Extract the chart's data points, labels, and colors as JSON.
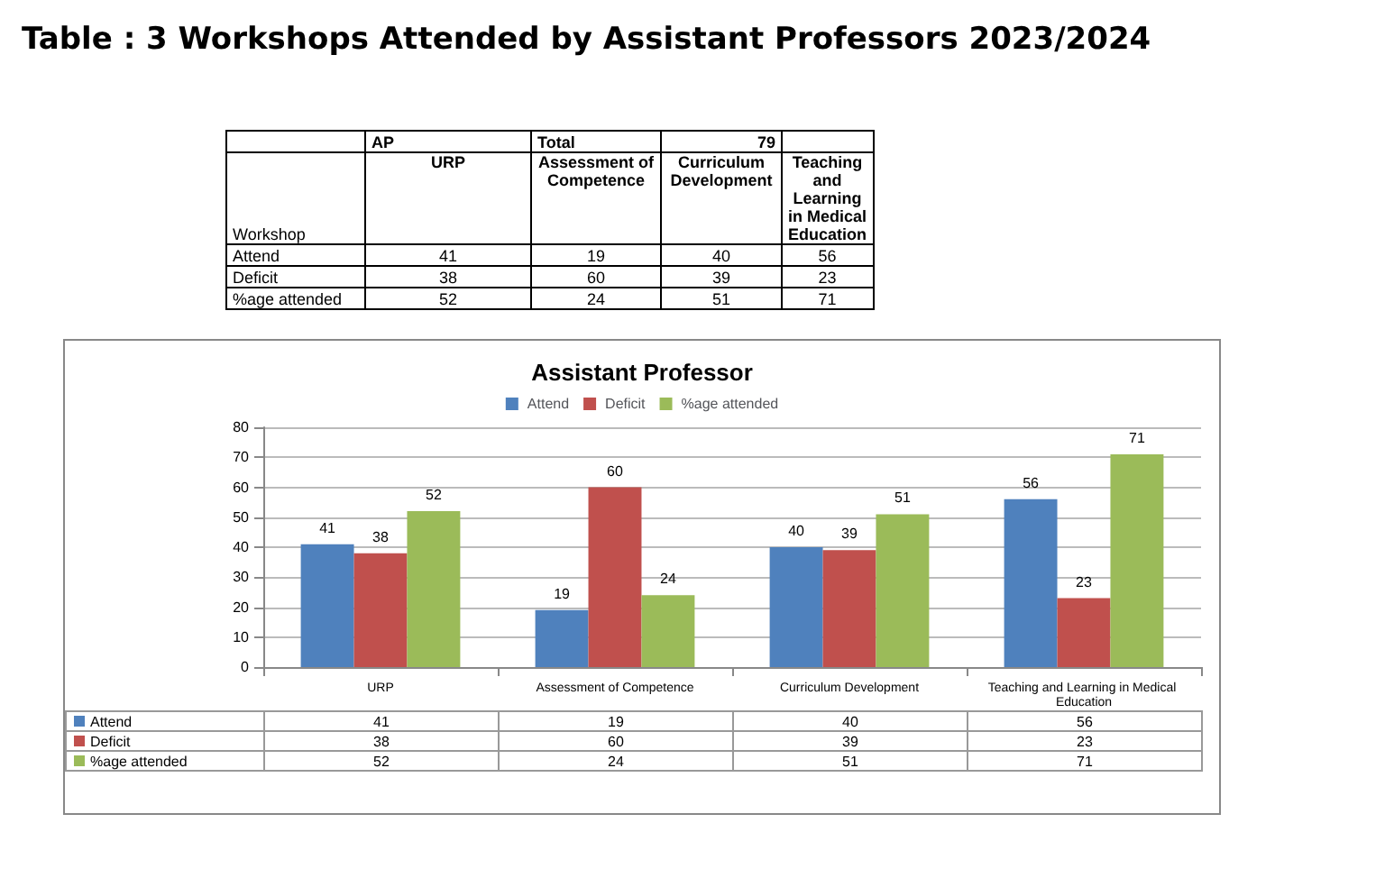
{
  "chart_data": [
    {
      "type": "other",
      "title": "Table : 3 Workshops Attended by Assistant Professors 2023/2024",
      "annotations": [
        "AP",
        "Total",
        "79",
        "Workshop"
      ],
      "categories": [
        "URP",
        "Assessment of Competence",
        "Curriculum Development",
        "Teaching and Learning in Medical Education"
      ],
      "series": [
        {
          "name": "Attend",
          "values": [
            41,
            19,
            40,
            56
          ],
          "value_labels": [
            "41",
            "19",
            "40",
            "56"
          ]
        },
        {
          "name": "Deficit",
          "values": [
            38,
            60,
            39,
            23
          ],
          "value_labels": [
            "38",
            "60",
            "39",
            "23"
          ]
        },
        {
          "name": "%age attended",
          "values": [
            52,
            24,
            51,
            71
          ],
          "value_labels": [
            "52",
            "24",
            "51",
            "71"
          ]
        }
      ]
    },
    {
      "type": "bar",
      "title": "Assistant Professor",
      "categories": [
        "URP",
        "Assessment of Competence",
        "Curriculum Development",
        "Teaching and Learning in Medical Education"
      ],
      "series": [
        {
          "name": "Attend",
          "color": "#4f81bd",
          "values": [
            41,
            19,
            40,
            56
          ],
          "value_labels": [
            "41",
            "19",
            "40",
            "56"
          ]
        },
        {
          "name": "Deficit",
          "color": "#c0504d",
          "values": [
            38,
            60,
            39,
            23
          ],
          "value_labels": [
            "38",
            "60",
            "39",
            "23"
          ]
        },
        {
          "name": "%age attended",
          "color": "#9bbb59",
          "values": [
            52,
            24,
            51,
            71
          ],
          "value_labels": [
            "52",
            "24",
            "51",
            "71"
          ]
        }
      ],
      "ylim": [
        0,
        80
      ],
      "yticks": [
        0,
        10,
        20,
        30,
        40,
        50,
        60,
        70,
        80
      ],
      "grid": "y",
      "legend": "top"
    }
  ]
}
